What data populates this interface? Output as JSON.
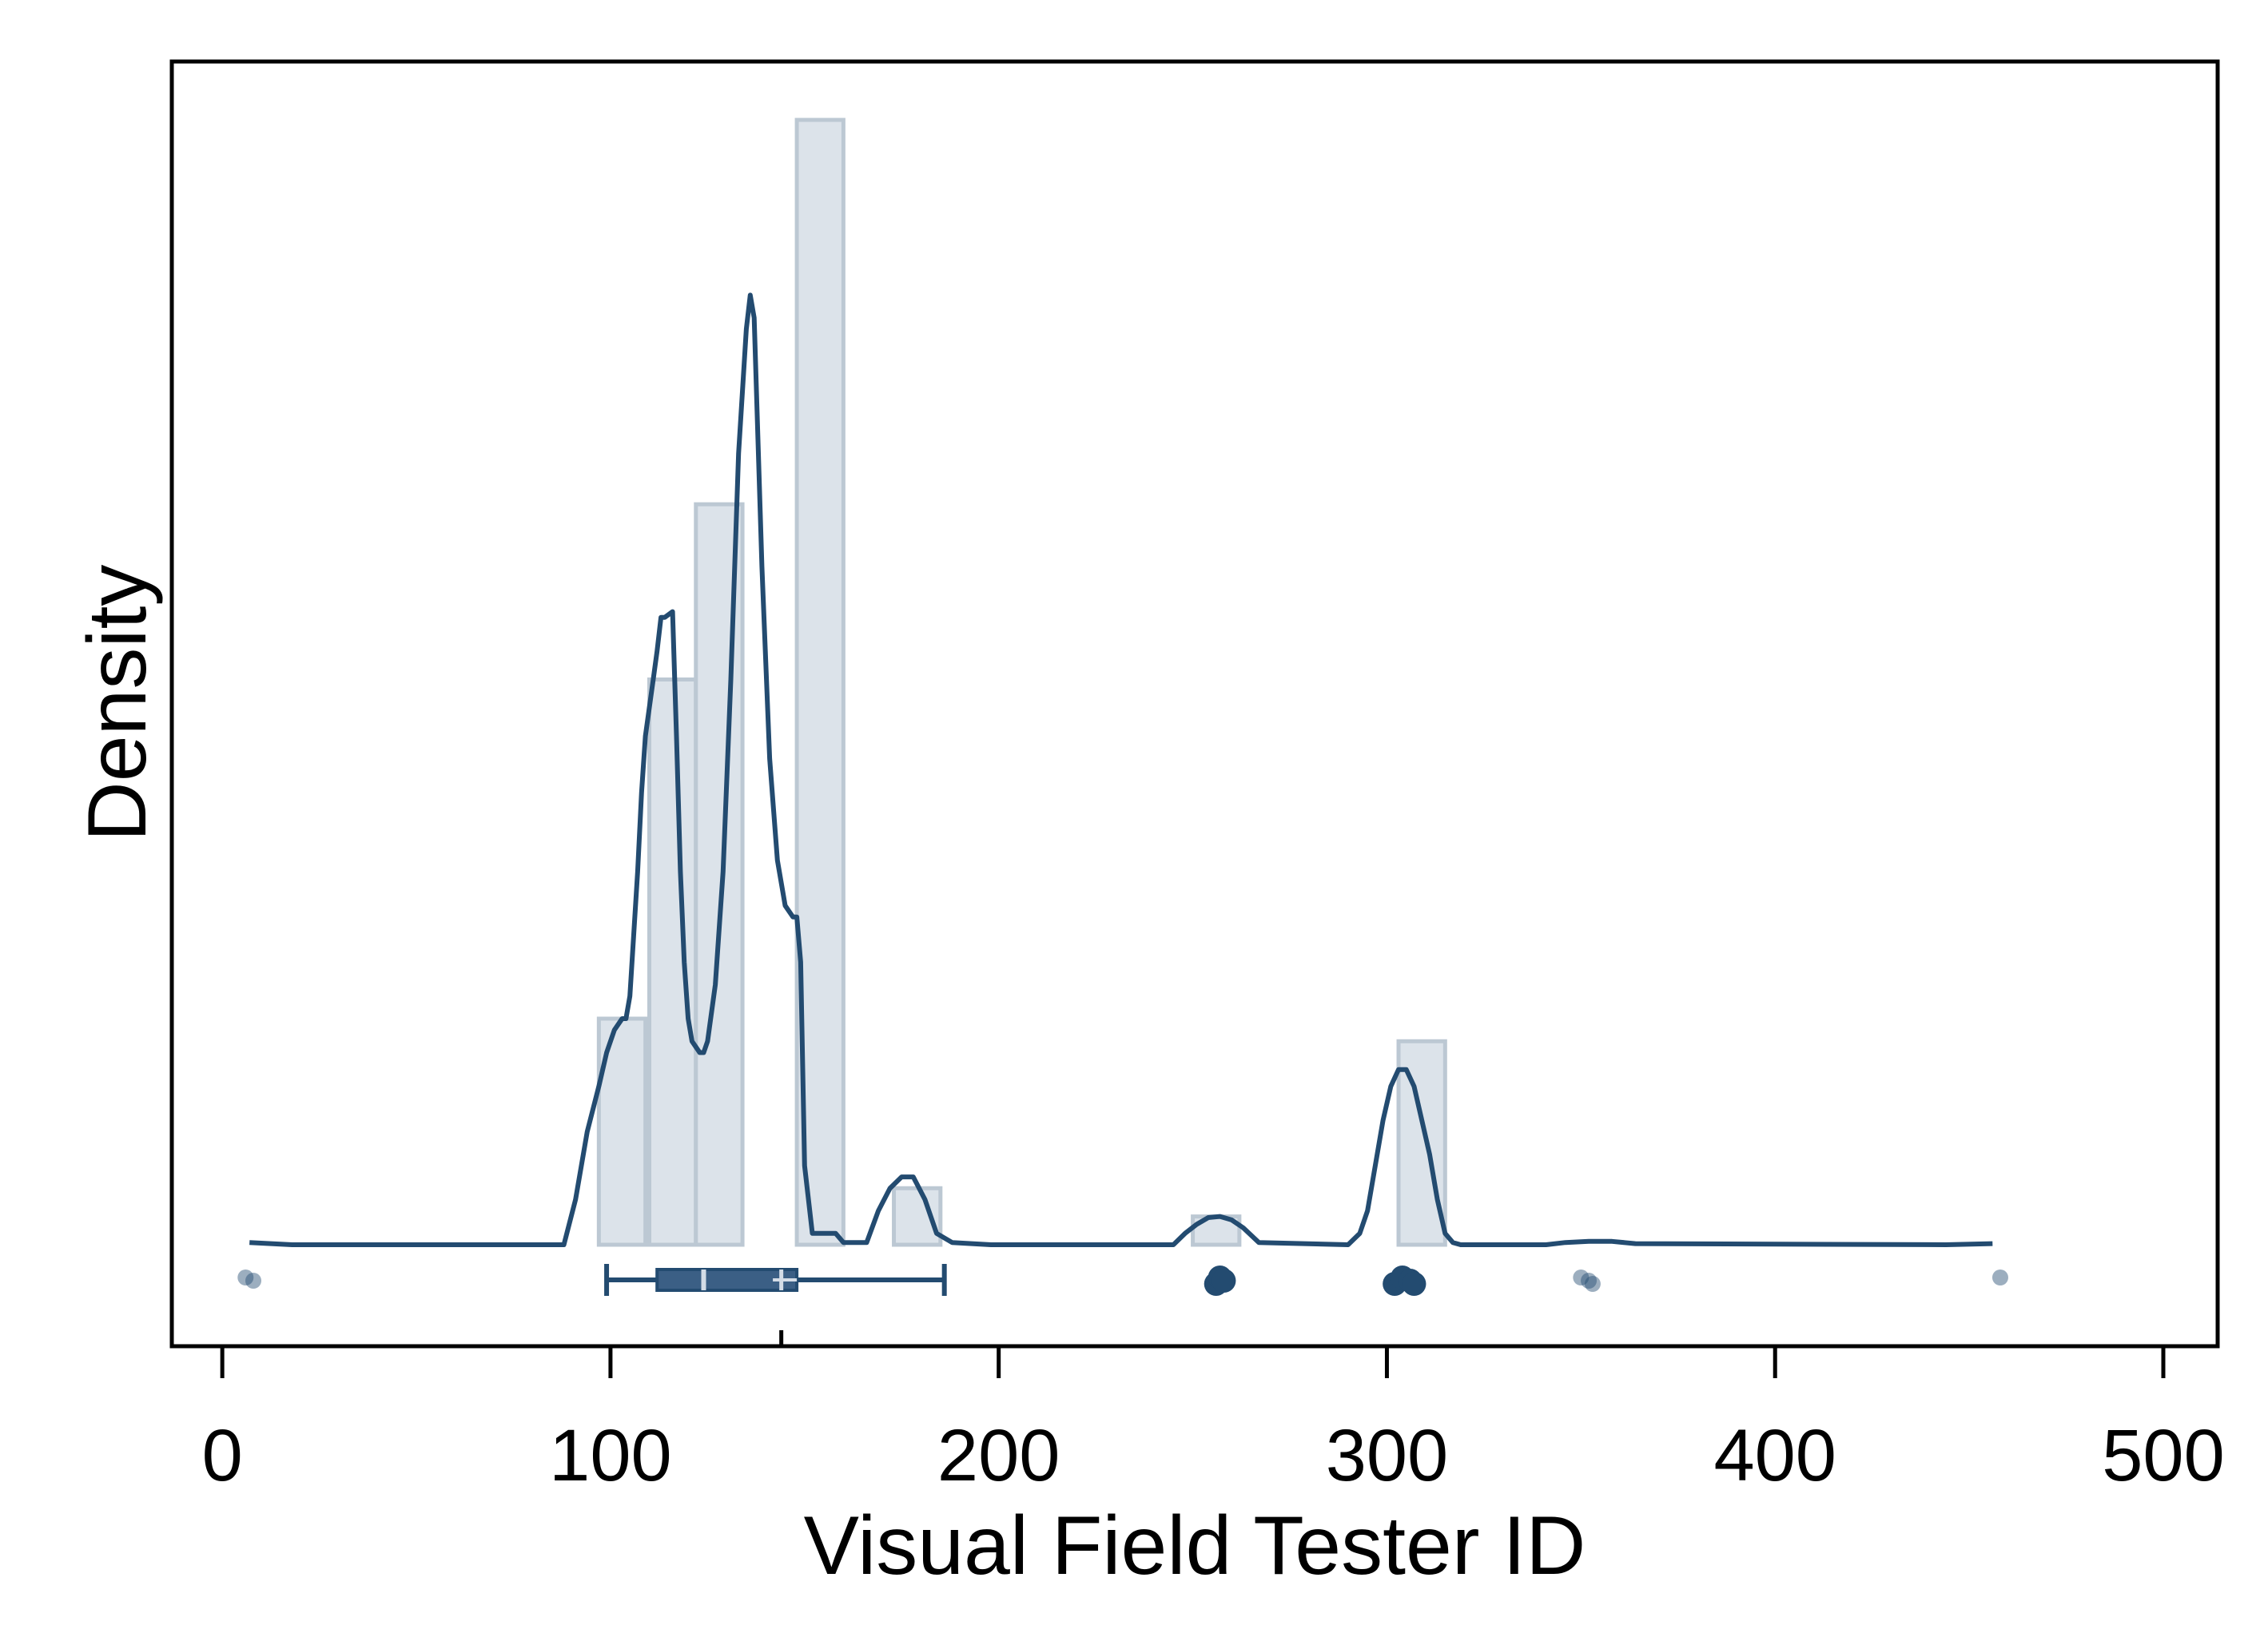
{
  "chart_data": {
    "type": "histogram_density",
    "xlabel": "Visual Field Tester ID",
    "ylabel": "Density",
    "xlim": [
      -13,
      514
    ],
    "ylim": [
      0,
      1.0
    ],
    "x_ticks": [
      0,
      100,
      200,
      300,
      400,
      500
    ],
    "x_tick_labels": [
      "0",
      "100",
      "200",
      "300",
      "400",
      "500"
    ],
    "mean_marker_x": 144,
    "histogram": {
      "bins": [
        {
          "x0": 97,
          "x1": 109,
          "density": 0.2
        },
        {
          "x0": 110,
          "x1": 122,
          "density": 0.5
        },
        {
          "x0": 122,
          "x1": 134,
          "density": 0.655
        },
        {
          "x0": 148,
          "x1": 160,
          "density": 0.995
        },
        {
          "x0": 173,
          "x1": 185,
          "density": 0.05
        },
        {
          "x0": 250,
          "x1": 262,
          "density": 0.025
        },
        {
          "x0": 303,
          "x1": 315,
          "density": 0.18
        }
      ]
    },
    "density_curve": {
      "x": [
        7,
        18,
        88,
        91,
        94,
        97,
        99,
        101,
        103,
        104,
        105,
        107,
        108,
        109,
        111,
        112,
        113,
        114,
        116,
        117,
        118,
        119,
        120,
        121,
        123,
        124,
        125,
        127,
        129,
        131,
        133,
        135,
        136,
        137,
        139,
        141,
        143,
        145,
        147,
        148,
        149,
        150,
        152,
        154,
        156,
        158,
        160,
        163,
        166,
        169,
        172,
        175,
        178,
        181,
        184,
        188,
        198,
        245,
        248,
        251,
        254,
        257,
        260,
        263,
        267,
        290,
        293,
        295,
        297,
        299,
        301,
        303,
        305,
        307,
        309,
        311,
        313,
        315,
        317,
        319,
        341,
        346,
        352,
        358,
        364,
        444,
        456
      ],
      "y": [
        0.002,
        0,
        0,
        0.04,
        0.1,
        0.14,
        0.17,
        0.19,
        0.2,
        0.2,
        0.22,
        0.33,
        0.4,
        0.45,
        0.5,
        0.525,
        0.555,
        0.555,
        0.56,
        0.45,
        0.33,
        0.25,
        0.2,
        0.18,
        0.17,
        0.17,
        0.18,
        0.23,
        0.33,
        0.5,
        0.7,
        0.81,
        0.84,
        0.82,
        0.6,
        0.43,
        0.34,
        0.3,
        0.29,
        0.29,
        0.25,
        0.07,
        0.01,
        0.01,
        0.01,
        0.01,
        0.002,
        0.002,
        0.002,
        0.03,
        0.05,
        0.06,
        0.06,
        0.04,
        0.01,
        0.002,
        0,
        0,
        0.01,
        0.018,
        0.024,
        0.025,
        0.022,
        0.015,
        0.002,
        0,
        0.01,
        0.03,
        0.07,
        0.11,
        0.14,
        0.155,
        0.155,
        0.14,
        0.11,
        0.08,
        0.04,
        0.01,
        0.002,
        0,
        0,
        0.002,
        0.003,
        0.003,
        0.001,
        0,
        0.001
      ]
    },
    "boxplot": {
      "whisker_low": 99,
      "q1": 112,
      "median": 124,
      "mean": 144,
      "q3": 148,
      "whisker_high": 186
    },
    "outliers": [
      {
        "x": 6,
        "alpha": 0.45
      },
      {
        "x": 8,
        "alpha": 0.45
      },
      {
        "x": 256,
        "alpha": 1.0
      },
      {
        "x": 257,
        "alpha": 1.0
      },
      {
        "x": 258,
        "alpha": 1.0
      },
      {
        "x": 302,
        "alpha": 1.0
      },
      {
        "x": 304,
        "alpha": 1.0
      },
      {
        "x": 306,
        "alpha": 1.0
      },
      {
        "x": 307,
        "alpha": 1.0
      },
      {
        "x": 350,
        "alpha": 0.45
      },
      {
        "x": 352,
        "alpha": 0.45
      },
      {
        "x": 353,
        "alpha": 0.45
      },
      {
        "x": 458,
        "alpha": 0.45
      }
    ],
    "colors": {
      "line": "#234b70",
      "bar_fill": "#dce3ea",
      "bar_stroke": "#bcc8d3",
      "box_fill": "#3b5f85",
      "median": "#d3dce6",
      "axes": "#000000"
    },
    "grid": false,
    "legend": "none"
  }
}
